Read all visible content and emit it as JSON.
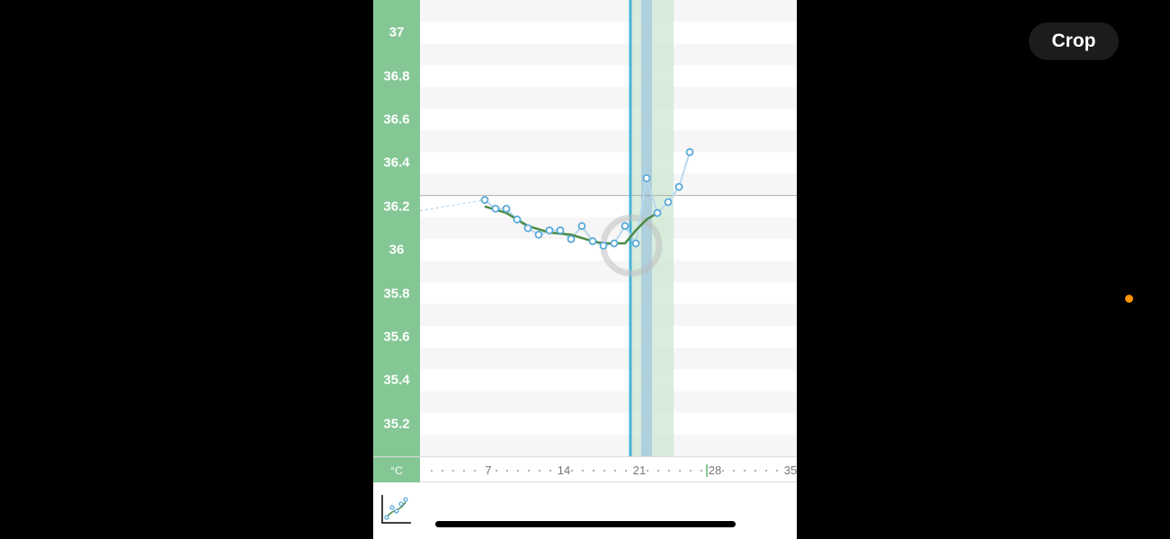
{
  "chart_data": {
    "type": "line",
    "ylabel": "°C",
    "yticks": [
      35.2,
      35.4,
      35.6,
      35.8,
      36,
      36.2,
      36.4,
      36.6,
      36.8,
      37
    ],
    "ylim": [
      35.05,
      37.15
    ],
    "xlim": [
      1,
      35
    ],
    "xticks": [
      7,
      14,
      21,
      28,
      35
    ],
    "x_highlight_tick": 28,
    "cover_line": 36.25,
    "current_day_line": 20,
    "fertile_window": [
      21,
      24
    ],
    "ovulation_day": 22,
    "series": [
      {
        "values": [
          {
            "x": 7,
            "y": 36.23
          },
          {
            "x": 8,
            "y": 36.19
          },
          {
            "x": 9,
            "y": 36.19
          },
          {
            "x": 10,
            "y": 36.14
          },
          {
            "x": 11,
            "y": 36.1
          },
          {
            "x": 12,
            "y": 36.07
          },
          {
            "x": 13,
            "y": 36.09
          },
          {
            "x": 14,
            "y": 36.09
          },
          {
            "x": 15,
            "y": 36.05
          },
          {
            "x": 16,
            "y": 36.11
          },
          {
            "x": 17,
            "y": 36.04
          },
          {
            "x": 18,
            "y": 36.02
          },
          {
            "x": 19,
            "y": 36.03
          },
          {
            "x": 20,
            "y": 36.11
          },
          {
            "x": 21,
            "y": 36.03
          },
          {
            "x": 22,
            "y": 36.33
          },
          {
            "x": 23,
            "y": 36.17
          },
          {
            "x": 24,
            "y": 36.22
          },
          {
            "x": 25,
            "y": 36.29
          },
          {
            "x": 26,
            "y": 36.45
          }
        ]
      },
      {
        "values": [
          {
            "x": 7,
            "y": 36.2
          },
          {
            "x": 9,
            "y": 36.17
          },
          {
            "x": 11,
            "y": 36.11
          },
          {
            "x": 13,
            "y": 36.08
          },
          {
            "x": 15,
            "y": 36.07
          },
          {
            "x": 17,
            "y": 36.04
          },
          {
            "x": 18,
            "y": 36.03
          },
          {
            "x": 20,
            "y": 36.03
          },
          {
            "x": 21,
            "y": 36.09
          },
          {
            "x": 22,
            "y": 36.14
          },
          {
            "x": 23,
            "y": 36.17
          }
        ]
      }
    ],
    "prior_point": {
      "x": 1,
      "y": 36.18
    }
  },
  "colors": {
    "axis_green": "#84c795",
    "smoothed_line": "#4a8c46",
    "point": "#5aa9d9",
    "current_day": "#47b3d7",
    "fertile": "#cfe9d4",
    "ovulation": "#a7cadc"
  },
  "toolbar": {
    "crop_label": "Crop"
  },
  "icons": {
    "chart": "chart-icon"
  }
}
